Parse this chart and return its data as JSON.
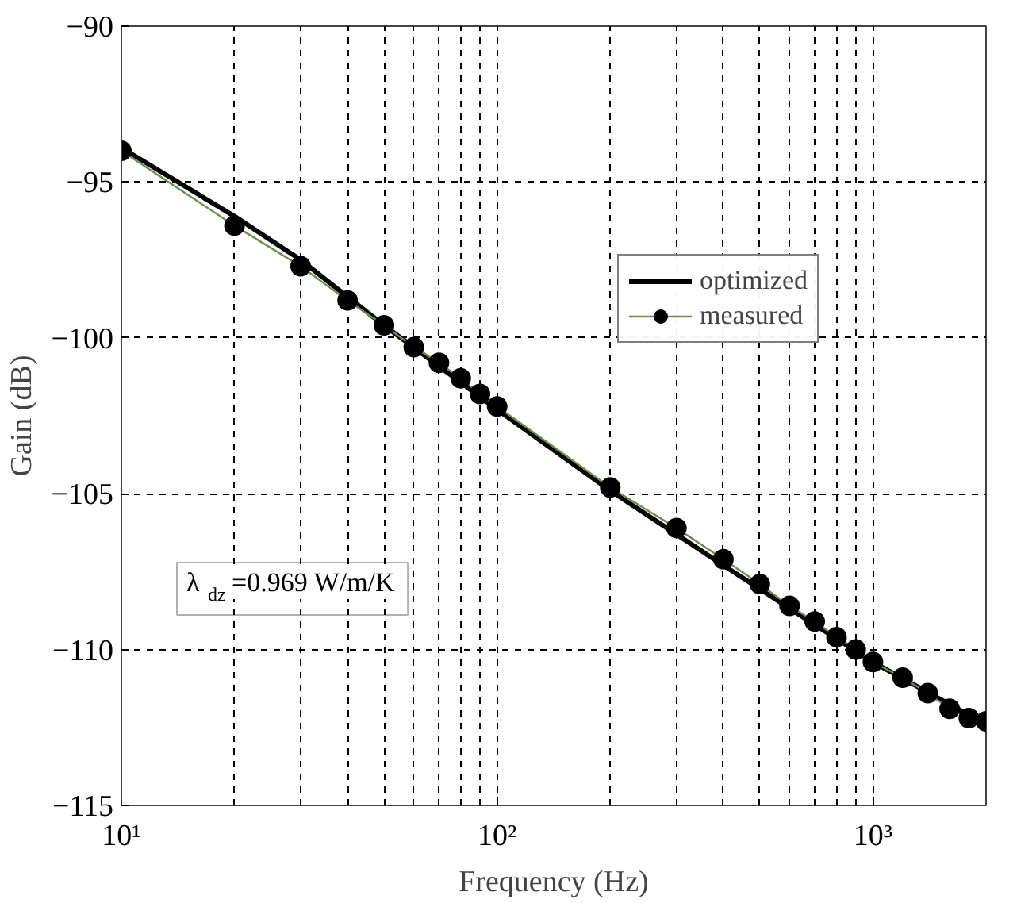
{
  "chart_data": {
    "type": "line",
    "xlabel": "Frequency (Hz)",
    "ylabel": "Gain (dB)",
    "log": "x",
    "grid": true,
    "legend": "top right",
    "xlim": [
      10,
      2000
    ],
    "ylim": [
      -115,
      -90
    ],
    "xticks": [
      {
        "value": 10,
        "label": "10¹"
      },
      {
        "value": 100,
        "label": "10²"
      },
      {
        "value": 1000,
        "label": "10³"
      }
    ],
    "yticks": [
      -115,
      -110,
      -105,
      -100,
      -95,
      -90
    ],
    "annotations": [
      "λ$_{dz}$=0.969 W/m/K"
    ],
    "series": [
      {
        "name": "optimized",
        "color": "#000000",
        "marker": "none",
        "x": [
          10,
          20,
          30,
          50,
          100,
          200,
          400,
          700,
          1000,
          2000
        ],
        "values": [
          -93.9,
          -96.1,
          -97.5,
          -99.6,
          -102.3,
          -104.9,
          -107.3,
          -109.2,
          -110.4,
          -112.4
        ]
      },
      {
        "name": "measured",
        "color": "#6b8e4e",
        "marker": "circle",
        "x": [
          10,
          20,
          30,
          40,
          50,
          60,
          70,
          80,
          90,
          100,
          200,
          300,
          400,
          500,
          600,
          700,
          800,
          900,
          1000,
          1200,
          1400,
          1600,
          1800,
          2000
        ],
        "values": [
          -94.0,
          -96.4,
          -97.7,
          -98.8,
          -99.6,
          -100.3,
          -100.8,
          -101.3,
          -101.8,
          -102.2,
          -104.8,
          -106.1,
          -107.1,
          -107.9,
          -108.6,
          -109.1,
          -109.6,
          -110.0,
          -110.4,
          -110.9,
          -111.4,
          -111.9,
          -112.2,
          -112.3
        ]
      }
    ]
  }
}
